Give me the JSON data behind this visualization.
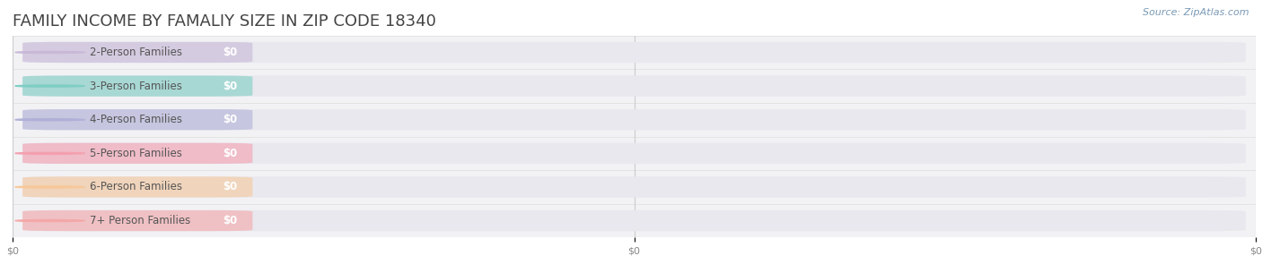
{
  "title": "FAMILY INCOME BY FAMALIY SIZE IN ZIP CODE 18340",
  "source": "Source: ZipAtlas.com",
  "categories": [
    "2-Person Families",
    "3-Person Families",
    "4-Person Families",
    "5-Person Families",
    "6-Person Families",
    "7+ Person Families"
  ],
  "values": [
    0,
    0,
    0,
    0,
    0,
    0
  ],
  "bar_colors": [
    "#c9b8d8",
    "#7ecec4",
    "#b0b0d8",
    "#f4a0b0",
    "#f7c899",
    "#f4a8a8"
  ],
  "label_color": "#555555",
  "value_label_color": "#ffffff",
  "background_color": "#ffffff",
  "title_color": "#444444",
  "source_color": "#7a9ab5",
  "tick_color": "#888888",
  "grid_color": "#cccccc",
  "row_bg_color": "#f2f2f5",
  "bar_bg_color": "#e8e8ee",
  "xlim": [
    0,
    1
  ],
  "bar_height": 0.62,
  "title_fontsize": 13,
  "label_fontsize": 8.5,
  "value_fontsize": 8.5,
  "source_fontsize": 8,
  "tick_fontsize": 8
}
